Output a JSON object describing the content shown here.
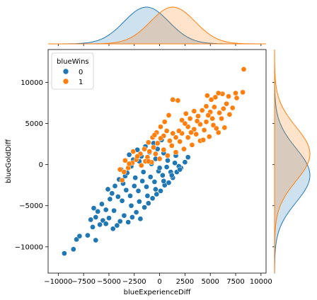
{
  "chart_data": {
    "type": "scatter",
    "xlabel": "blueExperienceDiff",
    "ylabel": "blueGoldDiff",
    "xlim": [
      -11000,
      10500
    ],
    "ylim": [
      -13200,
      14000
    ],
    "x_ticks": [
      -10000,
      -7500,
      -5000,
      -2500,
      0,
      2500,
      5000,
      7500,
      10000
    ],
    "x_tick_labels": [
      "−10000",
      "−7500",
      "−5000",
      "−2500",
      "0",
      "2500",
      "5000",
      "7500",
      "10000"
    ],
    "y_ticks": [
      -10000,
      -5000,
      0,
      5000,
      10000
    ],
    "y_tick_labels": [
      "−10000",
      "−5000",
      "0",
      "5000",
      "10000"
    ],
    "grid": false,
    "legend": {
      "title": "blueWins",
      "placement": "top-left",
      "entries": [
        {
          "label": "0",
          "color": "#1f77b4"
        },
        {
          "label": "1",
          "color": "#ff7f0e"
        }
      ]
    },
    "series": [
      {
        "name": "0",
        "color": "#1f77b4",
        "points": [
          [
            -9400,
            -10800
          ],
          [
            -8500,
            -10300
          ],
          [
            -8200,
            -9100
          ],
          [
            -7900,
            -8700
          ],
          [
            -7100,
            -8600
          ],
          [
            -6300,
            -9200
          ],
          [
            -6600,
            -7600
          ],
          [
            -6800,
            -6700
          ],
          [
            -6300,
            -6400
          ],
          [
            -5900,
            -7300
          ],
          [
            -5600,
            -6800
          ],
          [
            -5300,
            -7200
          ],
          [
            -5000,
            -6500
          ],
          [
            -4600,
            -7800
          ],
          [
            -4200,
            -7400
          ],
          [
            -3900,
            -6900
          ],
          [
            -3500,
            -6200
          ],
          [
            -3100,
            -7000
          ],
          [
            -2700,
            -6400
          ],
          [
            -2300,
            -5800
          ],
          [
            -1900,
            -6600
          ],
          [
            -1500,
            -5200
          ],
          [
            -1100,
            -4700
          ],
          [
            -700,
            -4100
          ],
          [
            -300,
            -3600
          ],
          [
            100,
            -3200
          ],
          [
            500,
            -2500
          ],
          [
            900,
            -2200
          ],
          [
            1300,
            -1600
          ],
          [
            1700,
            -900
          ],
          [
            2100,
            -400
          ],
          [
            2500,
            300
          ],
          [
            -6500,
            -5300
          ],
          [
            -6100,
            -5700
          ],
          [
            -5700,
            -4800
          ],
          [
            -5300,
            -5500
          ],
          [
            -4900,
            -4200
          ],
          [
            -4500,
            -5600
          ],
          [
            -4100,
            -3900
          ],
          [
            -3700,
            -4400
          ],
          [
            -3300,
            -3100
          ],
          [
            -2900,
            -3800
          ],
          [
            -2500,
            -2600
          ],
          [
            -2100,
            -3200
          ],
          [
            -1700,
            -2000
          ],
          [
            -1300,
            -2700
          ],
          [
            -900,
            -1500
          ],
          [
            -500,
            -2100
          ],
          [
            -100,
            -800
          ],
          [
            300,
            -1300
          ],
          [
            700,
            -300
          ],
          [
            1100,
            -900
          ],
          [
            1500,
            200
          ],
          [
            1900,
            -200
          ],
          [
            -3000,
            1200
          ],
          [
            -2600,
            600
          ],
          [
            -2200,
            1800
          ],
          [
            -1800,
            1000
          ],
          [
            -1400,
            2200
          ],
          [
            -1000,
            1500
          ],
          [
            -600,
            2600
          ],
          [
            -200,
            1900
          ],
          [
            200,
            3000
          ],
          [
            -3800,
            -600
          ],
          [
            -3400,
            -1400
          ],
          [
            -2800,
            -200
          ],
          [
            -2000,
            400
          ],
          [
            -1200,
            900
          ],
          [
            -400,
            700
          ],
          [
            400,
            1400
          ],
          [
            -4400,
            -2600
          ],
          [
            -4000,
            -1800
          ],
          [
            -3600,
            -2300
          ],
          [
            -3200,
            -1000
          ],
          [
            -2400,
            -1600
          ],
          [
            -1600,
            -900
          ],
          [
            -800,
            100
          ],
          [
            0,
            -400
          ],
          [
            800,
            500
          ],
          [
            1600,
            1100
          ],
          [
            -5100,
            -3000
          ],
          [
            -4700,
            -3500
          ],
          [
            -2800,
            -5000
          ],
          [
            -2000,
            -4500
          ],
          [
            -1200,
            -3800
          ],
          [
            -400,
            -3000
          ],
          [
            400,
            -2000
          ],
          [
            1200,
            -1300
          ],
          [
            2000,
            -600
          ],
          [
            2800,
            900
          ]
        ]
      },
      {
        "name": "1",
        "color": "#ff7f0e",
        "points": [
          [
            8300,
            11600
          ],
          [
            8200,
            8800
          ],
          [
            7500,
            8700
          ],
          [
            7600,
            8100
          ],
          [
            6800,
            8300
          ],
          [
            6200,
            8600
          ],
          [
            5800,
            8700
          ],
          [
            5500,
            8200
          ],
          [
            5100,
            7900
          ],
          [
            4700,
            8400
          ],
          [
            6600,
            7400
          ],
          [
            6300,
            6800
          ],
          [
            5900,
            6300
          ],
          [
            5400,
            7000
          ],
          [
            5000,
            6400
          ],
          [
            4600,
            7100
          ],
          [
            4200,
            6600
          ],
          [
            3800,
            5900
          ],
          [
            3400,
            6500
          ],
          [
            3000,
            5600
          ],
          [
            2600,
            6200
          ],
          [
            2200,
            5400
          ],
          [
            1800,
            7800
          ],
          [
            1300,
            7900
          ],
          [
            900,
            6000
          ],
          [
            500,
            5200
          ],
          [
            100,
            4600
          ],
          [
            -300,
            3900
          ],
          [
            -700,
            3300
          ],
          [
            -1100,
            2700
          ],
          [
            -1500,
            1900
          ],
          [
            -1900,
            1300
          ],
          [
            -2300,
            600
          ],
          [
            -2700,
            200
          ],
          [
            -3100,
            -400
          ],
          [
            -3500,
            -900
          ],
          [
            -3700,
            -1900
          ],
          [
            6400,
            4500
          ],
          [
            5800,
            3900
          ],
          [
            5300,
            4800
          ],
          [
            4900,
            3400
          ],
          [
            4400,
            4200
          ],
          [
            4000,
            2900
          ],
          [
            3600,
            3700
          ],
          [
            3200,
            2400
          ],
          [
            2800,
            3300
          ],
          [
            2400,
            1900
          ],
          [
            2000,
            2800
          ],
          [
            1600,
            1500
          ],
          [
            1200,
            2300
          ],
          [
            800,
            1100
          ],
          [
            400,
            1800
          ],
          [
            0,
            700
          ],
          [
            -400,
            1300
          ],
          [
            -800,
            300
          ],
          [
            -1200,
            900
          ],
          [
            5200,
            5600
          ],
          [
            4600,
            5200
          ],
          [
            4000,
            4900
          ],
          [
            3400,
            4300
          ],
          [
            2800,
            4600
          ],
          [
            2200,
            3800
          ],
          [
            1600,
            3300
          ],
          [
            1000,
            2900
          ],
          [
            400,
            3500
          ],
          [
            -200,
            2600
          ],
          [
            -600,
            2100
          ],
          [
            -1000,
            1600
          ],
          [
            -1400,
            400
          ],
          [
            -1800,
            -100
          ],
          [
            -2200,
            1000
          ],
          [
            -2600,
            1600
          ],
          [
            -3000,
            100
          ],
          [
            -3400,
            500
          ],
          [
            -3900,
            -600
          ],
          [
            7200,
            6900
          ],
          [
            6900,
            6100
          ],
          [
            6100,
            5600
          ],
          [
            5600,
            4400
          ],
          [
            4800,
            6000
          ],
          [
            4300,
            3000
          ],
          [
            3700,
            5300
          ],
          [
            3100,
            3900
          ],
          [
            2500,
            5000
          ],
          [
            1900,
            4100
          ],
          [
            1300,
            3800
          ],
          [
            700,
            4100
          ],
          [
            100,
            3200
          ],
          [
            -500,
            3600
          ],
          [
            -1100,
            400
          ]
        ]
      }
    ],
    "marginal": {
      "x_kde": [
        {
          "name": "0",
          "color": "#1f77b4",
          "center": -1300,
          "sd": 2200
        },
        {
          "name": "1",
          "color": "#ff7f0e",
          "center": 1300,
          "sd": 2200
        }
      ],
      "y_kde": [
        {
          "name": "0",
          "color": "#1f77b4",
          "center": -1300,
          "sd": 3300
        },
        {
          "name": "1",
          "color": "#ff7f0e",
          "center": 1300,
          "sd": 3300
        }
      ]
    }
  }
}
